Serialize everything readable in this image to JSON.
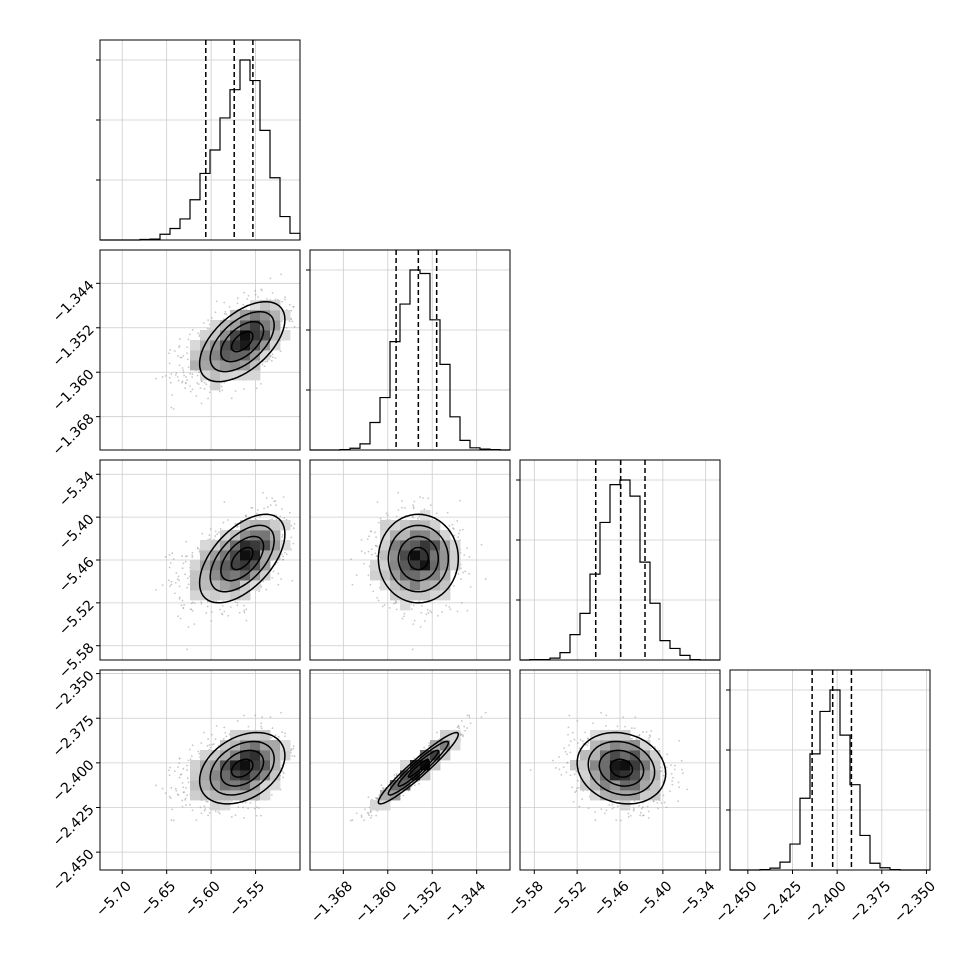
{
  "chart_data": {
    "type": "corner",
    "parameters": [
      {
        "range": [
          -5.725,
          -5.5
        ],
        "ticks": [
          -5.7,
          -5.65,
          -5.6,
          -5.55
        ],
        "tick_labels": [
          "−5.70",
          "−5.65",
          "−5.60",
          "−5.55"
        ],
        "center": -5.565,
        "sd": 0.024,
        "skew_left": true,
        "quantiles": [
          -5.606,
          -5.574,
          -5.553
        ]
      },
      {
        "range": [
          -1.374,
          -1.338
        ],
        "ticks": [
          -1.368,
          -1.36,
          -1.352,
          -1.344
        ],
        "tick_labels": [
          "−1.368",
          "−1.360",
          "−1.352",
          "−1.344"
        ],
        "center": -1.3545,
        "sd": 0.0036,
        "skew_left": false,
        "quantiles": [
          -1.3585,
          -1.3545,
          -1.3512
        ]
      },
      {
        "range": [
          -5.6,
          -5.32
        ],
        "ticks": [
          -5.58,
          -5.52,
          -5.46,
          -5.4,
          -5.34
        ],
        "tick_labels": [
          "−5.58",
          "−5.52",
          "−5.46",
          "−5.40",
          "−5.34"
        ],
        "center": -5.458,
        "sd": 0.031,
        "skew_left": false,
        "quantiles": [
          -5.494,
          -5.459,
          -5.425
        ]
      },
      {
        "range": [
          -2.46,
          -2.348
        ],
        "ticks": [
          -2.45,
          -2.425,
          -2.4,
          -2.375,
          -2.35
        ],
        "tick_labels": [
          "−2.450",
          "−2.425",
          "−2.400",
          "−2.375",
          "−2.350"
        ],
        "center": -2.403,
        "sd": 0.01,
        "skew_left": false,
        "quantiles": [
          -2.414,
          -2.4025,
          -2.392
        ]
      }
    ],
    "correlations": [
      [
        1.0,
        0.55,
        0.55,
        0.35
      ],
      [
        0.55,
        1.0,
        0.0,
        0.95
      ],
      [
        0.55,
        0.0,
        1.0,
        -0.15
      ],
      [
        0.35,
        0.95,
        -0.15,
        1.0
      ]
    ],
    "grid": true,
    "histogram_bins": 20,
    "scatter_points": 2200,
    "contour_levels": 4
  }
}
